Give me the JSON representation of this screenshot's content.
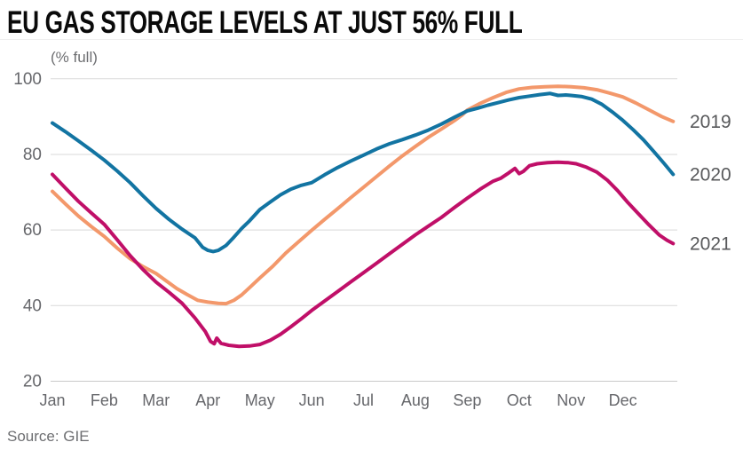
{
  "header": {
    "title": "EU GAS STORAGE LEVELS AT JUST 56% FULL"
  },
  "source": {
    "label": "Source: GIE"
  },
  "chart_data": {
    "type": "line",
    "title": "EU GAS STORAGE LEVELS AT JUST 56% FULL",
    "unit_label": "(% full)",
    "x_unit": "month index, 0 = Jan 1, fractional = day within month",
    "x_categories": [
      "Jan",
      "Feb",
      "Mar",
      "Apr",
      "May",
      "Jun",
      "Jul",
      "Aug",
      "Sep",
      "Oct",
      "Nov",
      "Dec"
    ],
    "ylim": [
      20,
      100
    ],
    "y_ticks": [
      20,
      40,
      60,
      80,
      100
    ],
    "grid": true,
    "legend_position": "right-edge-line-labels",
    "colors": {
      "axis_text": "#66676b",
      "label_text": "#58595b",
      "grid": "#d9d9d9",
      "baseline": "#c9c9c9",
      "title_text": "#0a0a0a"
    },
    "series": [
      {
        "name": "2019",
        "color": "#F3986B",
        "points": [
          [
            0,
            70.1
          ],
          [
            0.25,
            66.8
          ],
          [
            0.5,
            63.6
          ],
          [
            0.75,
            60.8
          ],
          [
            1,
            58.2
          ],
          [
            1.25,
            55.1
          ],
          [
            1.5,
            52.3
          ],
          [
            1.75,
            50.2
          ],
          [
            2,
            48.4
          ],
          [
            2.2,
            46.4
          ],
          [
            2.4,
            44.4
          ],
          [
            2.6,
            42.8
          ],
          [
            2.8,
            41.3
          ],
          [
            3,
            40.8
          ],
          [
            3.2,
            40.5
          ],
          [
            3.35,
            40.4
          ],
          [
            3.5,
            41.3
          ],
          [
            3.65,
            42.7
          ],
          [
            3.8,
            44.6
          ],
          [
            4,
            47.2
          ],
          [
            4.25,
            50.3
          ],
          [
            4.5,
            53.8
          ],
          [
            4.75,
            56.8
          ],
          [
            5,
            59.8
          ],
          [
            5.25,
            62.7
          ],
          [
            5.5,
            65.5
          ],
          [
            5.75,
            68.4
          ],
          [
            6,
            71.2
          ],
          [
            6.25,
            74
          ],
          [
            6.5,
            76.8
          ],
          [
            6.75,
            79.5
          ],
          [
            7,
            82
          ],
          [
            7.25,
            84.4
          ],
          [
            7.5,
            86.6
          ],
          [
            7.75,
            88.8
          ],
          [
            7.9,
            90.3
          ],
          [
            8,
            91.6
          ],
          [
            8.25,
            93.4
          ],
          [
            8.5,
            94.9
          ],
          [
            8.75,
            96.3
          ],
          [
            9,
            97.2
          ],
          [
            9.25,
            97.6
          ],
          [
            9.5,
            97.8
          ],
          [
            9.75,
            97.9
          ],
          [
            10,
            97.8
          ],
          [
            10.25,
            97.5
          ],
          [
            10.5,
            97
          ],
          [
            10.75,
            96.1
          ],
          [
            11,
            95.1
          ],
          [
            11.25,
            93.5
          ],
          [
            11.5,
            91.7
          ],
          [
            11.75,
            89.9
          ],
          [
            11.97,
            88.6
          ]
        ]
      },
      {
        "name": "2020",
        "color": "#1274A2",
        "points": [
          [
            0,
            88.2
          ],
          [
            0.25,
            85.9
          ],
          [
            0.5,
            83.5
          ],
          [
            0.75,
            81
          ],
          [
            1,
            78.4
          ],
          [
            1.25,
            75.5
          ],
          [
            1.5,
            72.4
          ],
          [
            1.75,
            68.9
          ],
          [
            2,
            65.6
          ],
          [
            2.25,
            62.7
          ],
          [
            2.5,
            60.1
          ],
          [
            2.75,
            57.8
          ],
          [
            2.9,
            55.3
          ],
          [
            3,
            54.5
          ],
          [
            3.1,
            54.2
          ],
          [
            3.2,
            54.5
          ],
          [
            3.35,
            55.8
          ],
          [
            3.5,
            58
          ],
          [
            3.65,
            60.3
          ],
          [
            3.8,
            62.3
          ],
          [
            4,
            65.3
          ],
          [
            4.2,
            67.3
          ],
          [
            4.4,
            69.2
          ],
          [
            4.6,
            70.7
          ],
          [
            4.8,
            71.7
          ],
          [
            5,
            72.4
          ],
          [
            5.25,
            74.5
          ],
          [
            5.5,
            76.4
          ],
          [
            5.75,
            78.1
          ],
          [
            6,
            79.7
          ],
          [
            6.25,
            81.3
          ],
          [
            6.5,
            82.7
          ],
          [
            6.75,
            83.8
          ],
          [
            7,
            85
          ],
          [
            7.25,
            86.3
          ],
          [
            7.5,
            87.9
          ],
          [
            7.75,
            89.7
          ],
          [
            8,
            91.4
          ],
          [
            8.2,
            92.1
          ],
          [
            8.4,
            92.9
          ],
          [
            8.6,
            93.6
          ],
          [
            8.8,
            94.3
          ],
          [
            9,
            94.9
          ],
          [
            9.2,
            95.3
          ],
          [
            9.4,
            95.7
          ],
          [
            9.6,
            96
          ],
          [
            9.75,
            95.5
          ],
          [
            9.9,
            95.6
          ],
          [
            10,
            95.5
          ],
          [
            10.2,
            95.2
          ],
          [
            10.4,
            94.5
          ],
          [
            10.6,
            93.1
          ],
          [
            10.8,
            91.1
          ],
          [
            11,
            88.9
          ],
          [
            11.2,
            86.4
          ],
          [
            11.4,
            83.7
          ],
          [
            11.6,
            80.6
          ],
          [
            11.8,
            77.4
          ],
          [
            11.97,
            74.6
          ]
        ]
      },
      {
        "name": "2021",
        "color": "#C00F68",
        "points": [
          [
            0,
            74.6
          ],
          [
            0.25,
            71
          ],
          [
            0.5,
            67.5
          ],
          [
            0.75,
            64.4
          ],
          [
            1,
            61.4
          ],
          [
            1.25,
            57.3
          ],
          [
            1.5,
            53.1
          ],
          [
            1.75,
            49.4
          ],
          [
            2,
            46.1
          ],
          [
            2.25,
            43.4
          ],
          [
            2.5,
            40.5
          ],
          [
            2.75,
            36.6
          ],
          [
            2.95,
            33
          ],
          [
            3.05,
            30.4
          ],
          [
            3.12,
            29.8
          ],
          [
            3.17,
            31.3
          ],
          [
            3.25,
            29.9
          ],
          [
            3.4,
            29.4
          ],
          [
            3.6,
            29.1
          ],
          [
            3.8,
            29.2
          ],
          [
            4,
            29.6
          ],
          [
            4.2,
            30.7
          ],
          [
            4.4,
            32.3
          ],
          [
            4.6,
            34.3
          ],
          [
            4.8,
            36.4
          ],
          [
            5,
            38.6
          ],
          [
            5.25,
            41.1
          ],
          [
            5.5,
            43.6
          ],
          [
            5.75,
            46.1
          ],
          [
            6,
            48.6
          ],
          [
            6.25,
            51.1
          ],
          [
            6.5,
            53.6
          ],
          [
            6.75,
            56.1
          ],
          [
            7,
            58.6
          ],
          [
            7.25,
            60.9
          ],
          [
            7.5,
            63.2
          ],
          [
            7.75,
            65.8
          ],
          [
            8,
            68.3
          ],
          [
            8.25,
            70.7
          ],
          [
            8.5,
            72.8
          ],
          [
            8.65,
            73.6
          ],
          [
            8.8,
            75
          ],
          [
            8.92,
            76.2
          ],
          [
            9,
            74.8
          ],
          [
            9.08,
            75.4
          ],
          [
            9.2,
            76.9
          ],
          [
            9.35,
            77.4
          ],
          [
            9.55,
            77.7
          ],
          [
            9.75,
            77.8
          ],
          [
            9.95,
            77.7
          ],
          [
            10.1,
            77.4
          ],
          [
            10.3,
            76.5
          ],
          [
            10.5,
            75.2
          ],
          [
            10.7,
            73.1
          ],
          [
            10.9,
            70.3
          ],
          [
            11.1,
            67.1
          ],
          [
            11.3,
            64.2
          ],
          [
            11.5,
            61.3
          ],
          [
            11.7,
            58.6
          ],
          [
            11.85,
            57.2
          ],
          [
            11.97,
            56.3
          ]
        ]
      }
    ]
  }
}
